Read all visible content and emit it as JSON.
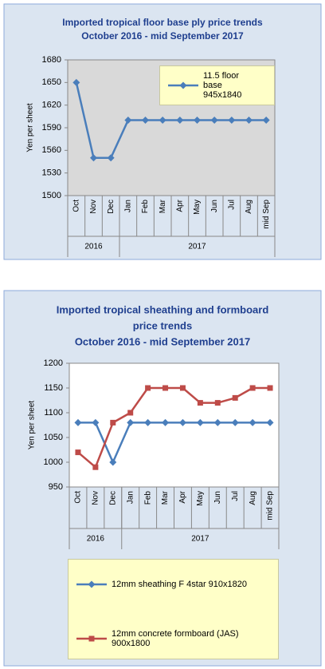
{
  "chart_data": [
    {
      "type": "line",
      "title": [
        "Imported tropical floor base ply price trends",
        "October 2016 - mid September 2017"
      ],
      "y_label": "Yen per sheet",
      "categories": [
        "Oct",
        "Nov",
        "Dec",
        "Jan",
        "Feb",
        "Mar",
        "Apr",
        "May",
        "Jun",
        "Jul",
        "Aug",
        "mid Sep"
      ],
      "year_groups": [
        {
          "name": "2016",
          "count": 3
        },
        {
          "name": "2017",
          "count": 9
        }
      ],
      "series": [
        {
          "name": "11.5 floor base 945x1840",
          "color": "#4a7ebb",
          "marker": "diamond",
          "values": [
            1650,
            1550,
            1550,
            1600,
            1600,
            1600,
            1600,
            1600,
            1600,
            1600,
            1600,
            1600
          ]
        }
      ],
      "ylim": [
        1500,
        1680
      ],
      "yticks": [
        1500,
        1530,
        1560,
        1590,
        1620,
        1650,
        1680
      ],
      "legend": "top-right"
    },
    {
      "type": "line",
      "title": [
        "Imported tropical sheathing and formboard",
        "price trends",
        "October 2016 - mid September 2017"
      ],
      "y_label": "Yen per sheet",
      "categories": [
        "Oct",
        "Nov",
        "Dec",
        "Jan",
        "Feb",
        "Mar",
        "Apr",
        "May",
        "Jun",
        "Jul",
        "Aug",
        "mid Sep"
      ],
      "year_groups": [
        {
          "name": "2016",
          "count": 3
        },
        {
          "name": "2017",
          "count": 9
        }
      ],
      "series": [
        {
          "name": "12mm sheathing F 4star 910x1820",
          "color": "#4a7ebb",
          "marker": "diamond",
          "values": [
            1080,
            1080,
            1000,
            1080,
            1080,
            1080,
            1080,
            1080,
            1080,
            1080,
            1080,
            1080
          ]
        },
        {
          "name": "12mm concrete formboard (JAS) 900x1800",
          "color": "#be4b48",
          "marker": "square",
          "values": [
            1020,
            990,
            1080,
            1100,
            1150,
            1150,
            1150,
            1120,
            1120,
            1130,
            1150,
            1150
          ]
        }
      ],
      "ylim": [
        950,
        1200
      ],
      "yticks": [
        950,
        1000,
        1050,
        1100,
        1150,
        1200
      ],
      "legend": "bottom"
    }
  ]
}
